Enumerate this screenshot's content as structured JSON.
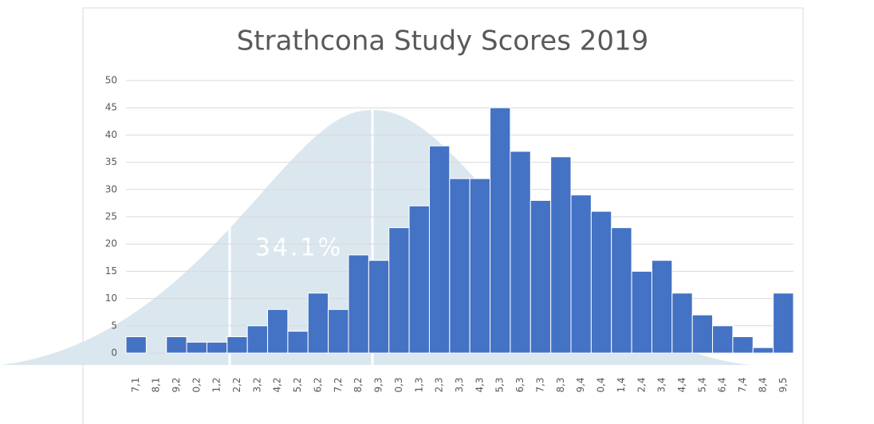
{
  "chart_data": {
    "type": "bar",
    "title": "Strathcona Study Scores 2019",
    "categories": [
      "7,1",
      "8,1",
      "9,2",
      "0,2",
      "1,2",
      "2,2",
      "3,2",
      "4,2",
      "5,2",
      "6,2",
      "7,2",
      "8,2",
      "9,3",
      "0,3",
      "1,3",
      "2,3",
      "3,3",
      "4,3",
      "5,3",
      "6,3",
      "7,3",
      "8,3",
      "9,4",
      "0,4",
      "1,4",
      "2,4",
      "3,4",
      "4,4",
      "5,4",
      "6,4",
      "7,4",
      "8,4",
      "9,5"
    ],
    "values": [
      3,
      0,
      3,
      2,
      2,
      3,
      5,
      8,
      4,
      11,
      8,
      18,
      17,
      23,
      27,
      38,
      32,
      32,
      45,
      37,
      28,
      36,
      29,
      26,
      23,
      15,
      17,
      11,
      7,
      5,
      3,
      1,
      11
    ],
    "color": "#4472c4",
    "ylim": [
      0,
      50
    ],
    "yticks": [
      0,
      5,
      10,
      15,
      20,
      25,
      30,
      35,
      40,
      45,
      50
    ],
    "grid": true,
    "background_label": "34.1%"
  }
}
